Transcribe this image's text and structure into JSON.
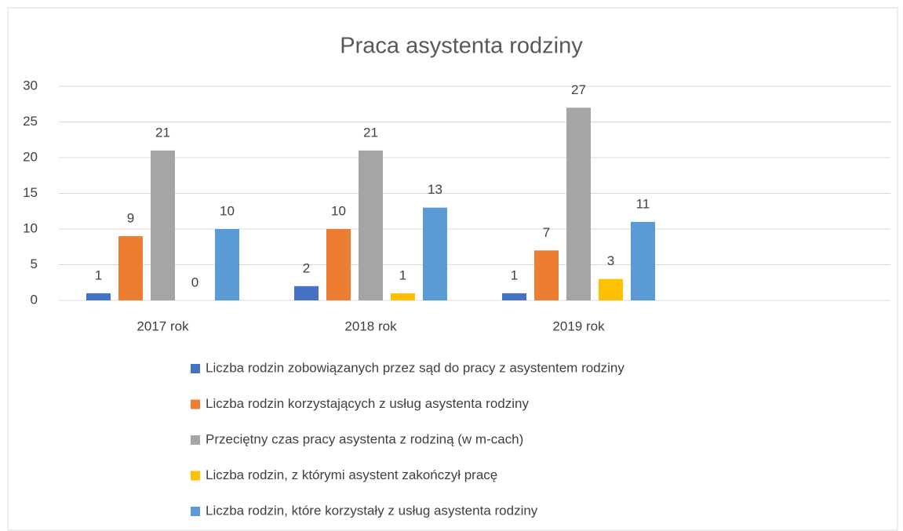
{
  "chart_data": {
    "type": "bar",
    "title": "Praca asystenta rodziny",
    "categories": [
      "2017 rok",
      "2018 rok",
      "2019 rok",
      null
    ],
    "series": [
      {
        "name": "Liczba rodzin zobowiązanych przez sąd do pracy z asystentem rodziny",
        "color": "#4472c4",
        "values": [
          1,
          2,
          1,
          null
        ]
      },
      {
        "name": "Liczba rodzin korzystających z usług asystenta rodziny",
        "color": "#ed7d31",
        "values": [
          9,
          10,
          7,
          null
        ]
      },
      {
        "name": "Przeciętny czas pracy asystenta z rodziną (w m-cach)",
        "color": "#a5a5a5",
        "values": [
          21,
          21,
          27,
          null
        ]
      },
      {
        "name": "Liczba rodzin, z którymi asystent zakończył pracę",
        "color": "#ffc000",
        "values": [
          0,
          1,
          3,
          null
        ]
      },
      {
        "name": "Liczba rodzin, które korzystały z usług asystenta rodziny",
        "color": "#5b9bd5",
        "values": [
          10,
          13,
          11,
          null
        ]
      }
    ],
    "ylim": [
      0,
      30
    ],
    "yticks": [
      0,
      5,
      10,
      15,
      20,
      25,
      30
    ],
    "grid": true,
    "legend": "bottom"
  }
}
